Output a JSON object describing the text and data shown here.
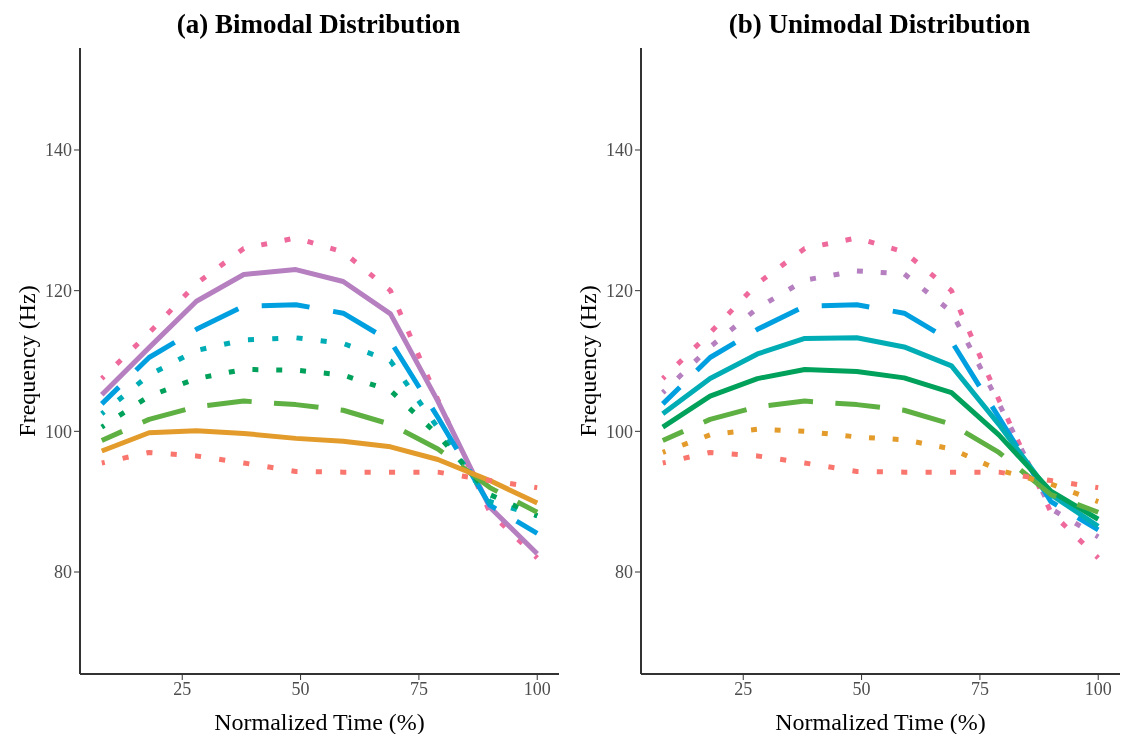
{
  "chart_data": [
    {
      "type": "line",
      "title": "(a) Bimodal Distribution",
      "xlabel": "Normalized Time (%)",
      "ylabel": "Frequency (Hz)",
      "x": [
        8,
        18,
        28,
        38,
        49,
        59,
        69,
        79,
        90,
        100
      ],
      "xlim": [
        3.4,
        104.6
      ],
      "xticks": [
        25,
        50,
        75,
        100
      ],
      "ylim": [
        65.5,
        154.5
      ],
      "yticks": [
        80,
        100,
        120,
        140
      ],
      "series": [
        {
          "color": "#ef6a9c",
          "line_style": "dotted",
          "values": [
            107.5,
            114,
            121,
            126,
            127.5,
            125.5,
            120,
            104.5,
            88.5,
            82
          ]
        },
        {
          "color": "#b57fc0",
          "line_style": "solid",
          "values": [
            105.2,
            111.9,
            118.5,
            122.3,
            123,
            121.3,
            116.7,
            104.3,
            89.2,
            82.6
          ]
        },
        {
          "color": "#00a0e0",
          "line_style": "dashed",
          "values": [
            103.9,
            110.5,
            114.5,
            117.8,
            118,
            116.8,
            112.8,
            102,
            89.5,
            85.5
          ]
        },
        {
          "color": "#00adb5",
          "line_style": "dotted",
          "values": [
            102.5,
            108,
            111.5,
            113,
            113.3,
            112.5,
            110,
            100.5,
            90,
            88
          ]
        },
        {
          "color": "#00a15a",
          "line_style": "dotted",
          "values": [
            100.6,
            105,
            107.5,
            108.8,
            108.7,
            108,
            105.8,
            99.5,
            91,
            88
          ]
        },
        {
          "color": "#5fb043",
          "line_style": "dashed",
          "values": [
            98.7,
            101.7,
            103.5,
            104.3,
            103.8,
            103,
            101,
            97.5,
            92,
            88.5
          ]
        },
        {
          "color": "#e39b2b",
          "line_style": "solid",
          "values": [
            97.2,
            99.8,
            100.1,
            99.7,
            99,
            98.6,
            97.8,
            96,
            93,
            89.8
          ]
        },
        {
          "color": "#f8766d",
          "line_style": "dotted",
          "values": [
            95.5,
            97,
            96.5,
            95.5,
            94.3,
            94.2,
            94.2,
            94.2,
            93,
            92
          ]
        }
      ]
    },
    {
      "type": "line",
      "title": "(b) Unimodal Distribution",
      "xlabel": "Normalized Time (%)",
      "ylabel": "Frequency (Hz)",
      "x": [
        8,
        18,
        28,
        38,
        49,
        59,
        69,
        79,
        90,
        100
      ],
      "xlim": [
        3.4,
        104.6
      ],
      "xticks": [
        25,
        50,
        75,
        100
      ],
      "ylim": [
        65.5,
        154.5
      ],
      "yticks": [
        80,
        100,
        120,
        140
      ],
      "series": [
        {
          "color": "#ef6a9c",
          "line_style": "dotted",
          "values": [
            107.5,
            114,
            121,
            126,
            127.5,
            125.5,
            120,
            104.5,
            88.5,
            82
          ]
        },
        {
          "color": "#b57fc0",
          "line_style": "dotted",
          "values": [
            105.5,
            112,
            117.5,
            121.5,
            122.8,
            122.4,
            117,
            104,
            89,
            85
          ]
        },
        {
          "color": "#00a0e0",
          "line_style": "dashed",
          "values": [
            103.9,
            110.5,
            114.5,
            117.8,
            118,
            116.8,
            112.8,
            102,
            90,
            86
          ]
        },
        {
          "color": "#00adb5",
          "line_style": "solid",
          "values": [
            102.5,
            107.5,
            111,
            113.2,
            113.3,
            112,
            109.3,
            101,
            91,
            86.5
          ]
        },
        {
          "color": "#00a15a",
          "line_style": "solid",
          "values": [
            100.6,
            105,
            107.5,
            108.8,
            108.5,
            107.6,
            105.5,
            99.5,
            91.5,
            87.5
          ]
        },
        {
          "color": "#5fb043",
          "line_style": "dashed",
          "values": [
            98.7,
            101.7,
            103.5,
            104.3,
            103.8,
            103,
            101,
            97,
            91,
            88.5
          ]
        },
        {
          "color": "#e39b2b",
          "line_style": "dotted",
          "values": [
            97,
            99.5,
            100.3,
            100,
            99.2,
            98.8,
            97.5,
            94.5,
            92.5,
            90
          ]
        },
        {
          "color": "#f8766d",
          "line_style": "dotted",
          "values": [
            95.5,
            97,
            96.5,
            95.5,
            94.3,
            94.2,
            94.2,
            94.2,
            93,
            92
          ]
        }
      ]
    }
  ]
}
